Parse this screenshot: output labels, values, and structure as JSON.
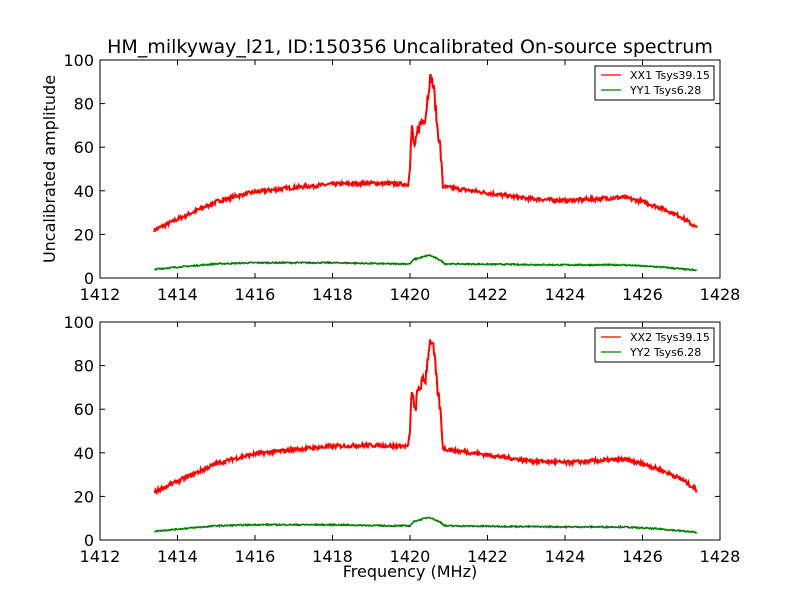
{
  "chart_data": {
    "type": "line",
    "title": "HM_milkyway_l21, ID:150356 Uncalibrated On-source spectrum",
    "panels": [
      {
        "xlabel": "",
        "ylabel": "Uncalibrated amplitude",
        "xlim": [
          1412,
          1428
        ],
        "ylim": [
          0,
          100
        ],
        "xticks": [
          "1412",
          "1414",
          "1416",
          "1418",
          "1420",
          "1422",
          "1424",
          "1426",
          "1428"
        ],
        "yticks": [
          "0",
          "20",
          "40",
          "60",
          "80",
          "100"
        ],
        "legend_position": "top-right",
        "series": [
          {
            "name": "XX1 Tsys39.15",
            "color": "#ff0000",
            "x": [
              1413.4,
              1414,
              1414.5,
              1415,
              1415.5,
              1416,
              1417,
              1418,
              1419,
              1419.95,
              1420.0,
              1420.05,
              1420.12,
              1420.2,
              1420.3,
              1420.4,
              1420.5,
              1420.55,
              1420.62,
              1420.7,
              1420.78,
              1420.85,
              1421,
              1422,
              1423,
              1424,
              1425,
              1425.5,
              1426,
              1426.5,
              1427,
              1427.4
            ],
            "y": [
              22,
              27,
              31,
              35,
              37.5,
              39.5,
              41.5,
              43,
              43.5,
              43,
              50,
              70,
              58,
              68,
              72,
              74,
              90,
              92,
              86,
              70,
              60,
              42,
              41.5,
              39,
              36.5,
              35.5,
              36.5,
              37,
              35,
              32,
              28,
              23
            ]
          },
          {
            "name": "YY1 Tsys6.28",
            "color": "#008000",
            "x": [
              1413.4,
              1414,
              1415,
              1416,
              1418,
              1419.5,
              1420,
              1420.1,
              1420.5,
              1420.8,
              1420.9,
              1424,
              1425.5,
              1426.5,
              1427.4
            ],
            "y": [
              4,
              5,
              6.5,
              7,
              7,
              6.5,
              6.5,
              8.5,
              10.5,
              8,
              6.5,
              6,
              6,
              5,
              3.5
            ]
          }
        ]
      },
      {
        "xlabel": "Frequency (MHz)",
        "ylabel": "",
        "xlim": [
          1412,
          1428
        ],
        "ylim": [
          0,
          100
        ],
        "xticks": [
          "1412",
          "1414",
          "1416",
          "1418",
          "1420",
          "1422",
          "1424",
          "1426",
          "1428"
        ],
        "yticks": [
          "0",
          "20",
          "40",
          "60",
          "80",
          "100"
        ],
        "legend_position": "top-right",
        "series": [
          {
            "name": "XX2 Tsys39.15",
            "color": "#ff0000",
            "x": [
              1413.4,
              1414,
              1414.5,
              1415,
              1415.5,
              1416,
              1417,
              1418,
              1419,
              1419.95,
              1420.0,
              1420.05,
              1420.12,
              1420.2,
              1420.3,
              1420.4,
              1420.5,
              1420.55,
              1420.62,
              1420.7,
              1420.78,
              1420.85,
              1421,
              1422,
              1423,
              1424,
              1425,
              1425.5,
              1426,
              1426.5,
              1427,
              1427.4
            ],
            "y": [
              22,
              27,
              31,
              35,
              37.5,
              39.5,
              41.5,
              43,
              43.5,
              43,
              50,
              70,
              58,
              68,
              72,
              74,
              90,
              92,
              86,
              70,
              60,
              42,
              41.5,
              39,
              36.5,
              35.5,
              36.5,
              37,
              35,
              32,
              28,
              23
            ]
          },
          {
            "name": "YY2 Tsys6.28",
            "color": "#008000",
            "x": [
              1413.4,
              1414,
              1415,
              1416,
              1418,
              1419.5,
              1420,
              1420.1,
              1420.5,
              1420.8,
              1420.9,
              1424,
              1425.5,
              1426.5,
              1427.4
            ],
            "y": [
              4,
              5,
              6.5,
              7,
              7,
              6.5,
              6.5,
              8.5,
              10.5,
              8,
              6.5,
              6,
              6,
              5,
              3.5
            ]
          }
        ]
      }
    ]
  }
}
